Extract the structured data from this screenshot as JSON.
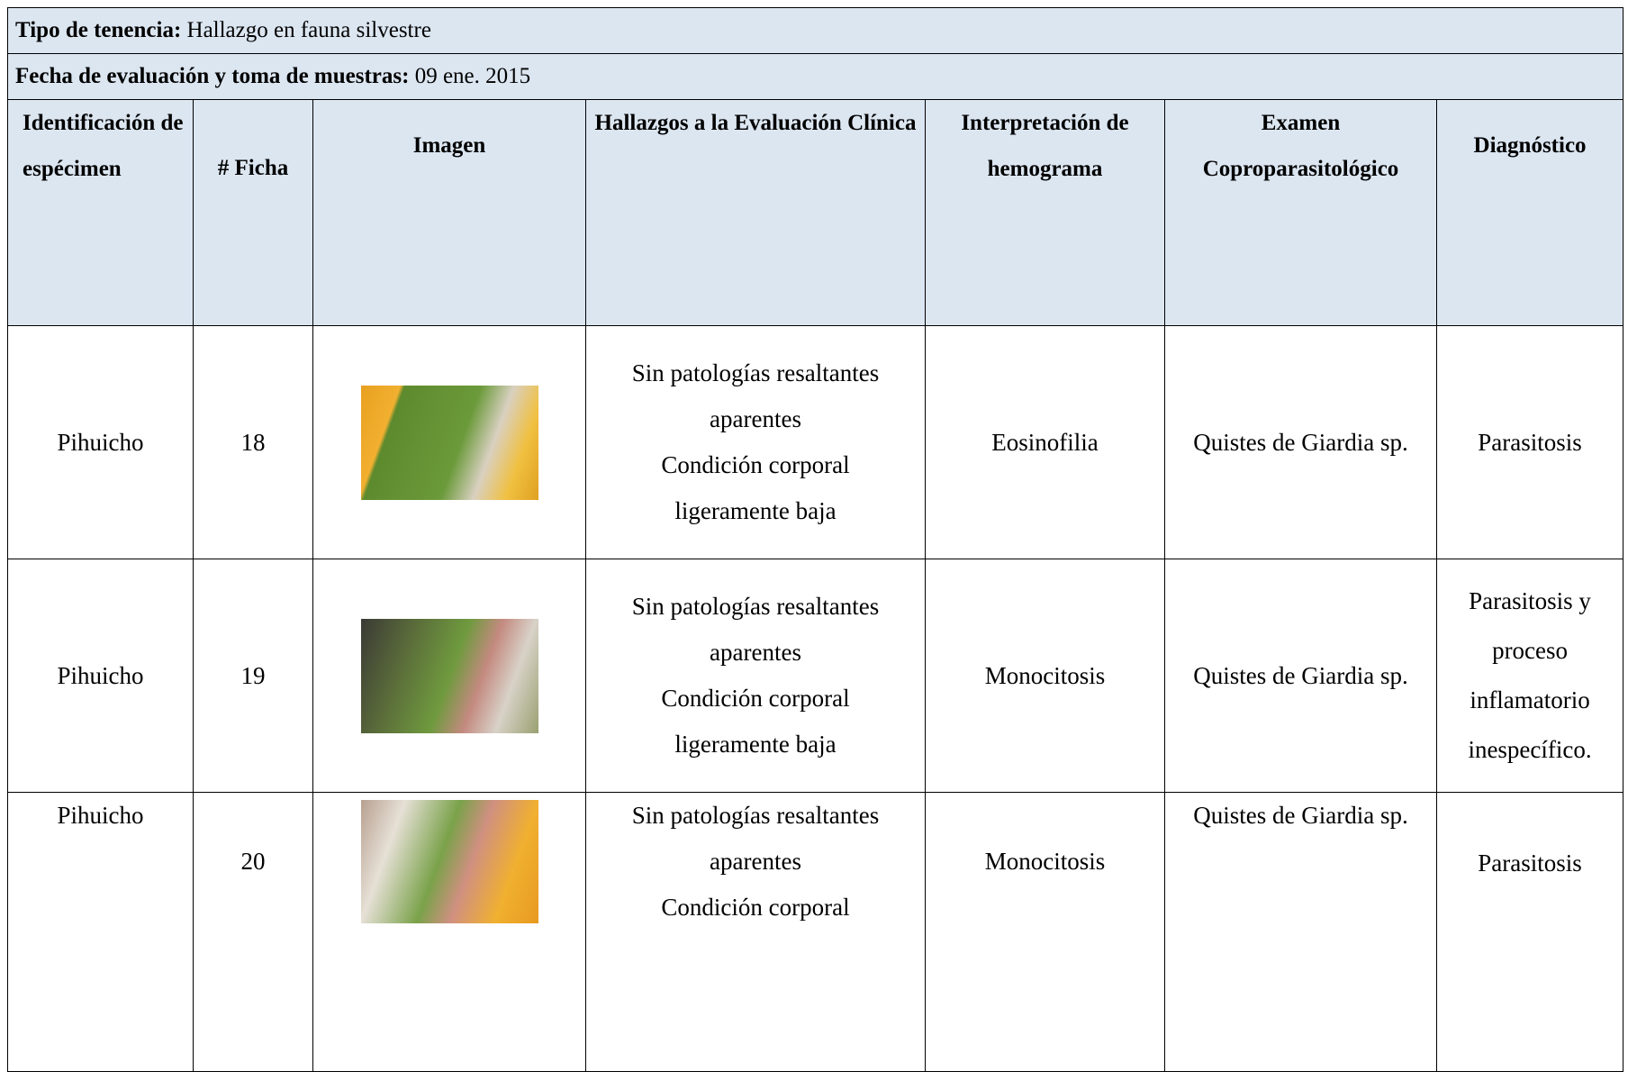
{
  "header": {
    "tenencia_label": "Tipo de tenencia:",
    "tenencia_value": "Hallazgo en fauna silvestre",
    "fecha_label": "Fecha de evaluación y toma de muestras:",
    "fecha_value": "09 ene. 2015"
  },
  "table": {
    "columns": [
      "Identificación de espécimen",
      "# Ficha",
      "Imagen",
      "Hallazgos a la Evaluación Clínica",
      "Interpretación de hemograma",
      "Examen Coproparasitológico",
      "Diagnóstico"
    ],
    "rows": [
      {
        "especimen": "Pihuicho",
        "ficha": "18",
        "hallazgos": [
          "Sin patologías resaltantes aparentes",
          "Condición corporal ligeramente baja"
        ],
        "hemograma": "Eosinofilia",
        "copro": "Quistes de Giardia sp.",
        "diagnostico": "Parasitosis"
      },
      {
        "especimen": "Pihuicho",
        "ficha": "19",
        "hallazgos": [
          "Sin patologías resaltantes aparentes",
          "Condición corporal ligeramente baja"
        ],
        "hemograma": "Monocitosis",
        "copro": "Quistes de Giardia sp.",
        "diagnostico": "Parasitosis y proceso inflamatorio inespecífico."
      },
      {
        "especimen": "Pihuicho",
        "ficha": "20",
        "hallazgos": [
          "Sin patologías resaltantes aparentes",
          "Condición corporal"
        ],
        "hemograma": "Monocitosis",
        "copro": "Quistes de Giardia sp.",
        "diagnostico": "Parasitosis"
      }
    ]
  }
}
